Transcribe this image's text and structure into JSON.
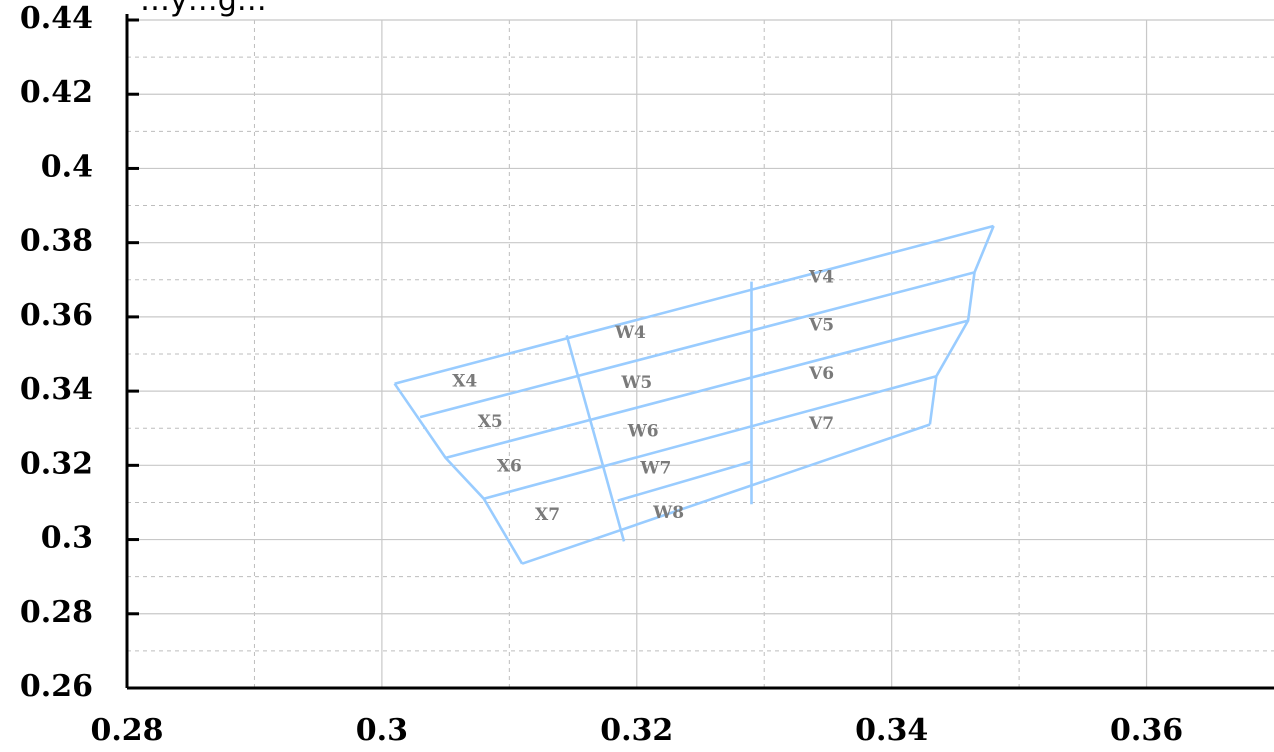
{
  "chart_data": {
    "type": "line",
    "title_fragment": "…y…g…",
    "xlabel": "",
    "ylabel": "",
    "xlim": [
      0.28,
      0.37
    ],
    "ylim": [
      0.26,
      0.44
    ],
    "x_ticks": [
      "0.28",
      "0.3",
      "0.32",
      "0.34",
      "0.36"
    ],
    "y_ticks": [
      "0.44",
      "0.42",
      "0.4",
      "0.38",
      "0.36",
      "0.34",
      "0.32",
      "0.3",
      "0.28",
      "0.26"
    ],
    "x_tick_values": [
      0.28,
      0.3,
      0.32,
      0.34,
      0.36
    ],
    "y_tick_values": [
      0.44,
      0.42,
      0.4,
      0.38,
      0.36,
      0.34,
      0.32,
      0.3,
      0.28,
      0.26
    ],
    "grid": true,
    "line_color": "#99ccff",
    "label_color": "#7a7a7a",
    "series": [
      {
        "x": [
          0.301,
          0.348
        ],
        "y": [
          0.342,
          0.3845
        ]
      },
      {
        "x": [
          0.303,
          0.3465
        ],
        "y": [
          0.333,
          0.372
        ]
      },
      {
        "x": [
          0.305,
          0.346
        ],
        "y": [
          0.322,
          0.359
        ]
      },
      {
        "x": [
          0.308,
          0.3435
        ],
        "y": [
          0.311,
          0.344
        ]
      },
      {
        "x": [
          0.311,
          0.343
        ],
        "y": [
          0.2935,
          0.331
        ]
      },
      {
        "x": [
          0.301,
          0.305,
          0.308,
          0.311
        ],
        "y": [
          0.342,
          0.322,
          0.311,
          0.2935
        ]
      },
      {
        "x": [
          0.348,
          0.3465,
          0.346,
          0.3435,
          0.343
        ],
        "y": [
          0.3845,
          0.372,
          0.359,
          0.344,
          0.331
        ]
      },
      {
        "x": [
          0.3145,
          0.319
        ],
        "y": [
          0.355,
          0.2995
        ]
      },
      {
        "x": [
          0.329,
          0.329
        ],
        "y": [
          0.3695,
          0.3095
        ]
      },
      {
        "x": [
          0.3185,
          0.329
        ],
        "y": [
          0.3105,
          0.321
        ]
      }
    ],
    "region_labels": [
      {
        "text": "X4",
        "x": 0.3065,
        "y": 0.3425
      },
      {
        "text": "X5",
        "x": 0.3085,
        "y": 0.3315
      },
      {
        "text": "X6",
        "x": 0.31,
        "y": 0.3195
      },
      {
        "text": "X7",
        "x": 0.313,
        "y": 0.3065
      },
      {
        "text": "W4",
        "x": 0.3195,
        "y": 0.3555
      },
      {
        "text": "W5",
        "x": 0.32,
        "y": 0.342
      },
      {
        "text": "W6",
        "x": 0.3205,
        "y": 0.329
      },
      {
        "text": "W7",
        "x": 0.3215,
        "y": 0.319
      },
      {
        "text": "W8",
        "x": 0.3225,
        "y": 0.307
      },
      {
        "text": "V4",
        "x": 0.3345,
        "y": 0.3705
      },
      {
        "text": "V5",
        "x": 0.3345,
        "y": 0.3575
      },
      {
        "text": "V6",
        "x": 0.3345,
        "y": 0.3445
      },
      {
        "text": "V7",
        "x": 0.3345,
        "y": 0.331
      }
    ]
  }
}
